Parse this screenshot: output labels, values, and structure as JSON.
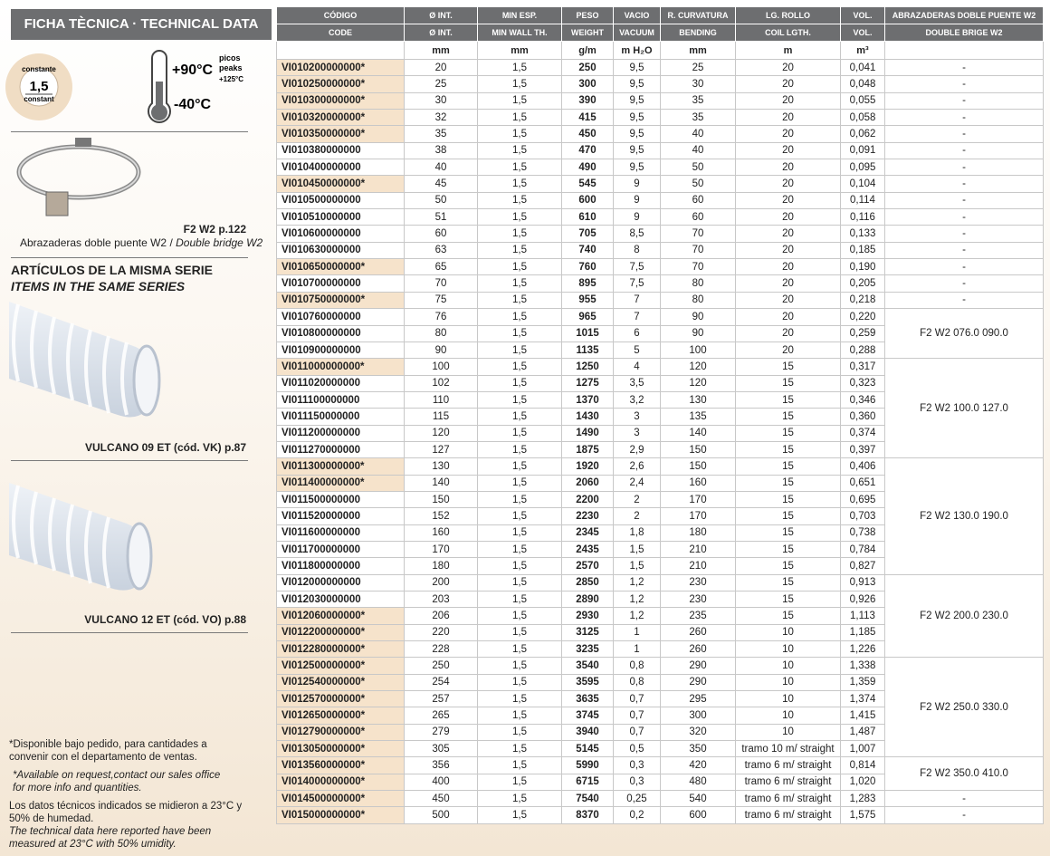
{
  "header": {
    "title": "FICHA TÈCNICA · TECHNICAL DATA"
  },
  "badge": {
    "top": "constante",
    "value": "1,5",
    "bottom": "constant"
  },
  "temperature": {
    "max": "+90°C",
    "peaks_es": "picos",
    "peaks_en": "peaks",
    "peak_value": "+125°C",
    "min": "-40°C"
  },
  "accessory": {
    "ref": "F2 W2 p.122",
    "desc_es": "Abrazaderas doble puente W2 /",
    "desc_en": "Double bridge W2"
  },
  "series": {
    "title_es": "ARTÍCULOS DE LA MISMA SERIE",
    "title_en": "ITEMS IN THE SAME SERIES",
    "items": [
      "VULCANO 09 ET (cód. VK) p.87",
      "VULCANO 12 ET (cód. VO) p.88"
    ]
  },
  "notes": {
    "availability_es": "*Disponible bajo pedido, para cantidades a convenir con el departamento de ventas.",
    "availability_en": "*Available on request,contact our sales office for more info and quantities.",
    "conditions_es": "Los datos técnicos indicados se midieron a 23°C y 50% de humedad.",
    "conditions_en": "The technical data here reported have been measured at 23°C with 50% umidity."
  },
  "table": {
    "headers_es": [
      "CÓDIGO",
      "Ø INT.",
      "MIN ESP.",
      "PESO",
      "VACIO",
      "R. CURVATURA",
      "LG. ROLLO",
      "VOL.",
      "ABRAZADERAS DOBLE PUENTE W2"
    ],
    "headers_en": [
      "CODE",
      "Ø INT.",
      "MIN WALL TH.",
      "WEIGHT",
      "VACUUM",
      "BENDING",
      "COIL LGTH.",
      "VOL.",
      "DOUBLE BRIGE W2"
    ],
    "units": [
      "mm",
      "mm",
      "g/m",
      "m H₂O",
      "mm",
      "m",
      "m³"
    ],
    "rows": [
      [
        "VI010200000000*",
        "20",
        "1,5",
        "250",
        "9,5",
        "25",
        "20",
        "0,041"
      ],
      [
        "VI010250000000*",
        "25",
        "1,5",
        "300",
        "9,5",
        "30",
        "20",
        "0,048"
      ],
      [
        "VI010300000000*",
        "30",
        "1,5",
        "390",
        "9,5",
        "35",
        "20",
        "0,055"
      ],
      [
        "VI010320000000*",
        "32",
        "1,5",
        "415",
        "9,5",
        "35",
        "20",
        "0,058"
      ],
      [
        "VI010350000000*",
        "35",
        "1,5",
        "450",
        "9,5",
        "40",
        "20",
        "0,062"
      ],
      [
        "VI010380000000",
        "38",
        "1,5",
        "470",
        "9,5",
        "40",
        "20",
        "0,091"
      ],
      [
        "VI010400000000",
        "40",
        "1,5",
        "490",
        "9,5",
        "50",
        "20",
        "0,095"
      ],
      [
        "VI010450000000*",
        "45",
        "1,5",
        "545",
        "9",
        "50",
        "20",
        "0,104"
      ],
      [
        "VI010500000000",
        "50",
        "1,5",
        "600",
        "9",
        "60",
        "20",
        "0,114"
      ],
      [
        "VI010510000000",
        "51",
        "1,5",
        "610",
        "9",
        "60",
        "20",
        "0,116"
      ],
      [
        "VI010600000000",
        "60",
        "1,5",
        "705",
        "8,5",
        "70",
        "20",
        "0,133"
      ],
      [
        "VI010630000000",
        "63",
        "1,5",
        "740",
        "8",
        "70",
        "20",
        "0,185"
      ],
      [
        "VI010650000000*",
        "65",
        "1,5",
        "760",
        "7,5",
        "70",
        "20",
        "0,190"
      ],
      [
        "VI010700000000",
        "70",
        "1,5",
        "895",
        "7,5",
        "80",
        "20",
        "0,205"
      ],
      [
        "VI010750000000*",
        "75",
        "1,5",
        "955",
        "7",
        "80",
        "20",
        "0,218"
      ],
      [
        "VI010760000000",
        "76",
        "1,5",
        "965",
        "7",
        "90",
        "20",
        "0,220"
      ],
      [
        "VI010800000000",
        "80",
        "1,5",
        "1015",
        "6",
        "90",
        "20",
        "0,259"
      ],
      [
        "VI010900000000",
        "90",
        "1,5",
        "1135",
        "5",
        "100",
        "20",
        "0,288"
      ],
      [
        "VI011000000000*",
        "100",
        "1,5",
        "1250",
        "4",
        "120",
        "15",
        "0,317"
      ],
      [
        "VI011020000000",
        "102",
        "1,5",
        "1275",
        "3,5",
        "120",
        "15",
        "0,323"
      ],
      [
        "VI011100000000",
        "110",
        "1,5",
        "1370",
        "3,2",
        "130",
        "15",
        "0,346"
      ],
      [
        "VI011150000000",
        "115",
        "1,5",
        "1430",
        "3",
        "135",
        "15",
        "0,360"
      ],
      [
        "VI011200000000",
        "120",
        "1,5",
        "1490",
        "3",
        "140",
        "15",
        "0,374"
      ],
      [
        "VI011270000000",
        "127",
        "1,5",
        "1875",
        "2,9",
        "150",
        "15",
        "0,397"
      ],
      [
        "VI011300000000*",
        "130",
        "1,5",
        "1920",
        "2,6",
        "150",
        "15",
        "0,406"
      ],
      [
        "VI011400000000*",
        "140",
        "1,5",
        "2060",
        "2,4",
        "160",
        "15",
        "0,651"
      ],
      [
        "VI011500000000",
        "150",
        "1,5",
        "2200",
        "2",
        "170",
        "15",
        "0,695"
      ],
      [
        "VI011520000000",
        "152",
        "1,5",
        "2230",
        "2",
        "170",
        "15",
        "0,703"
      ],
      [
        "VI011600000000",
        "160",
        "1,5",
        "2345",
        "1,8",
        "180",
        "15",
        "0,738"
      ],
      [
        "VI011700000000",
        "170",
        "1,5",
        "2435",
        "1,5",
        "210",
        "15",
        "0,784"
      ],
      [
        "VI011800000000",
        "180",
        "1,5",
        "2570",
        "1,5",
        "210",
        "15",
        "0,827"
      ],
      [
        "VI012000000000",
        "200",
        "1,5",
        "2850",
        "1,2",
        "230",
        "15",
        "0,913"
      ],
      [
        "VI012030000000",
        "203",
        "1,5",
        "2890",
        "1,2",
        "230",
        "15",
        "0,926"
      ],
      [
        "VI012060000000*",
        "206",
        "1,5",
        "2930",
        "1,2",
        "235",
        "15",
        "1,113"
      ],
      [
        "VI012200000000*",
        "220",
        "1,5",
        "3125",
        "1",
        "260",
        "10",
        "1,185"
      ],
      [
        "VI012280000000*",
        "228",
        "1,5",
        "3235",
        "1",
        "260",
        "10",
        "1,226"
      ],
      [
        "VI012500000000*",
        "250",
        "1,5",
        "3540",
        "0,8",
        "290",
        "10",
        "1,338"
      ],
      [
        "VI012540000000*",
        "254",
        "1,5",
        "3595",
        "0,8",
        "290",
        "10",
        "1,359"
      ],
      [
        "VI012570000000*",
        "257",
        "1,5",
        "3635",
        "0,7",
        "295",
        "10",
        "1,374"
      ],
      [
        "VI012650000000*",
        "265",
        "1,5",
        "3745",
        "0,7",
        "300",
        "10",
        "1,415"
      ],
      [
        "VI012790000000*",
        "279",
        "1,5",
        "3940",
        "0,7",
        "320",
        "10",
        "1,487"
      ],
      [
        "VI013050000000*",
        "305",
        "1,5",
        "5145",
        "0,5",
        "350",
        "tramo 10 m/ straight",
        "1,007"
      ],
      [
        "VI013560000000*",
        "356",
        "1,5",
        "5990",
        "0,3",
        "420",
        "tramo 6 m/ straight",
        "0,814"
      ],
      [
        "VI014000000000*",
        "400",
        "1,5",
        "6715",
        "0,3",
        "480",
        "tramo 6 m/ straight",
        "1,020"
      ],
      [
        "VI014500000000*",
        "450",
        "1,5",
        "7540",
        "0,25",
        "540",
        "tramo 6 m/ straight",
        "1,283"
      ],
      [
        "VI015000000000*",
        "500",
        "1,5",
        "8370",
        "0,2",
        "600",
        "tramo 6 m/ straight",
        "1,575"
      ]
    ],
    "clamps": [
      "-",
      "-",
      "-",
      "-",
      "-",
      "-",
      "-",
      "-",
      "-",
      "-",
      "-",
      "-",
      "-",
      "-",
      "-",
      "F2 W2 076.0 090.0",
      null,
      null,
      "F2 W2 100.0 127.0",
      null,
      null,
      null,
      null,
      null,
      "F2 W2 130.0 190.0",
      null,
      null,
      null,
      null,
      null,
      null,
      "F2 W2 200.0 230.0",
      null,
      null,
      null,
      null,
      "F2 W2 250.0 330.0",
      null,
      null,
      null,
      null,
      null,
      "F2 W2 350.0 410.0",
      null,
      "-",
      "-"
    ]
  }
}
